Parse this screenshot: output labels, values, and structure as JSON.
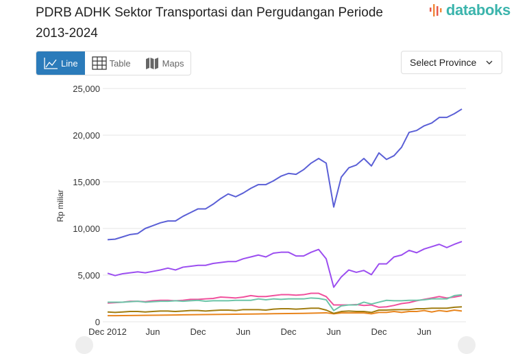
{
  "header": {
    "title": "PDRB ADHK Sektor Transportasi dan Pergudangan Periode 2013-2024",
    "logo_text": "databoks"
  },
  "tabs": [
    {
      "label": "Line",
      "icon": "line-chart-icon",
      "active": true
    },
    {
      "label": "Table",
      "icon": "table-icon",
      "active": false
    },
    {
      "label": "Maps",
      "icon": "map-icon",
      "active": false
    }
  ],
  "province_select": {
    "label": "Select Province"
  },
  "colors": {
    "accent": "#2b7bba",
    "logo": "#3bb4ac"
  },
  "chart_data": {
    "type": "line",
    "title": "",
    "xlabel": "",
    "ylabel": "Rp miliar",
    "ylim": [
      0,
      25000
    ],
    "yticks": [
      0,
      5000,
      10000,
      15000,
      20000,
      25000
    ],
    "ytick_labels": [
      "0",
      "5,000",
      "10,000",
      "15,000",
      "20,000",
      "25,000"
    ],
    "xtick_labels": [
      "Dec 2012",
      "Jun",
      "Dec",
      "Jun",
      "Dec",
      "Jun",
      "Dec",
      "Jun"
    ],
    "xtick_index": [
      0,
      6,
      12,
      18,
      24,
      30,
      36,
      42
    ],
    "grid": true,
    "series": [
      {
        "color": "#5a5fd6",
        "values": [
          8800,
          8850,
          9100,
          9350,
          9450,
          10000,
          10300,
          10600,
          10800,
          10800,
          11300,
          11700,
          12100,
          12100,
          12600,
          13200,
          13700,
          13400,
          13800,
          14300,
          14700,
          14700,
          15100,
          15600,
          15900,
          15800,
          16300,
          17000,
          17500,
          17000,
          12300,
          15500,
          16500,
          16800,
          17500,
          16700,
          18100,
          17400,
          17800,
          18700,
          20300,
          20500,
          21000,
          21300,
          21900,
          21900,
          22300,
          22800
        ]
      },
      {
        "color": "#9b4df0",
        "values": [
          5200,
          4950,
          5150,
          5250,
          5350,
          5250,
          5400,
          5550,
          5750,
          5550,
          5850,
          5950,
          6050,
          6050,
          6250,
          6350,
          6450,
          6450,
          6750,
          6950,
          7150,
          6950,
          7350,
          7450,
          7450,
          7050,
          7050,
          7450,
          7750,
          6750,
          3700,
          4800,
          5550,
          5300,
          5500,
          5050,
          6200,
          6200,
          6950,
          7150,
          7650,
          7400,
          7800,
          8050,
          8300,
          7950,
          8300,
          8600
        ]
      },
      {
        "color": "#6cc4a8",
        "values": [
          2100,
          2100,
          2100,
          2150,
          2200,
          2100,
          2150,
          2200,
          2200,
          2250,
          2200,
          2250,
          2300,
          2200,
          2250,
          2250,
          2250,
          2300,
          2300,
          2300,
          2450,
          2350,
          2450,
          2400,
          2450,
          2450,
          2450,
          2550,
          2500,
          2350,
          1200,
          1700,
          1800,
          1800,
          2100,
          1900,
          2100,
          2300,
          2250,
          2250,
          2300,
          2300,
          2350,
          2450,
          2450,
          2450,
          2800,
          2900
        ]
      },
      {
        "color": "#f0509c",
        "values": [
          2000,
          2050,
          2100,
          2200,
          2200,
          2150,
          2250,
          2300,
          2300,
          2250,
          2300,
          2400,
          2400,
          2450,
          2500,
          2650,
          2600,
          2550,
          2650,
          2800,
          2700,
          2700,
          2800,
          2900,
          2900,
          2850,
          2900,
          3050,
          3050,
          2700,
          1800,
          1800,
          1800,
          1850,
          1750,
          1800,
          1550,
          1600,
          1750,
          1950,
          2050,
          2250,
          2400,
          2550,
          2700,
          2550,
          2650,
          2800
        ]
      },
      {
        "color": "#a07c10",
        "values": [
          1050,
          1000,
          1050,
          1100,
          1100,
          1050,
          1100,
          1150,
          1150,
          1100,
          1150,
          1200,
          1200,
          1150,
          1200,
          1250,
          1250,
          1200,
          1300,
          1300,
          1300,
          1250,
          1350,
          1400,
          1400,
          1350,
          1400,
          1450,
          1450,
          1250,
          900,
          1100,
          1150,
          1100,
          1100,
          1000,
          1250,
          1250,
          1300,
          1300,
          1300,
          1400,
          1400,
          1450,
          1450,
          1450,
          1550,
          1600
        ]
      },
      {
        "color": "#e8841c",
        "values": [
          650,
          650,
          660,
          670,
          680,
          690,
          700,
          710,
          720,
          730,
          740,
          750,
          760,
          770,
          780,
          790,
          800,
          810,
          820,
          830,
          840,
          850,
          860,
          870,
          880,
          890,
          900,
          920,
          940,
          960,
          850,
          950,
          950,
          950,
          950,
          850,
          1000,
          1000,
          1100,
          1000,
          1100,
          1100,
          1200,
          1050,
          1200,
          1100,
          1250,
          1150
        ]
      }
    ]
  }
}
